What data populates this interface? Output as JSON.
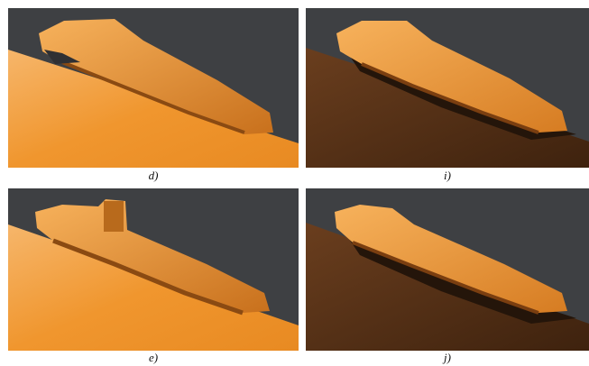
{
  "figure": {
    "panels": [
      {
        "label": "d)"
      },
      {
        "label": "i)"
      },
      {
        "label": "e)"
      },
      {
        "label": "j)"
      }
    ]
  }
}
